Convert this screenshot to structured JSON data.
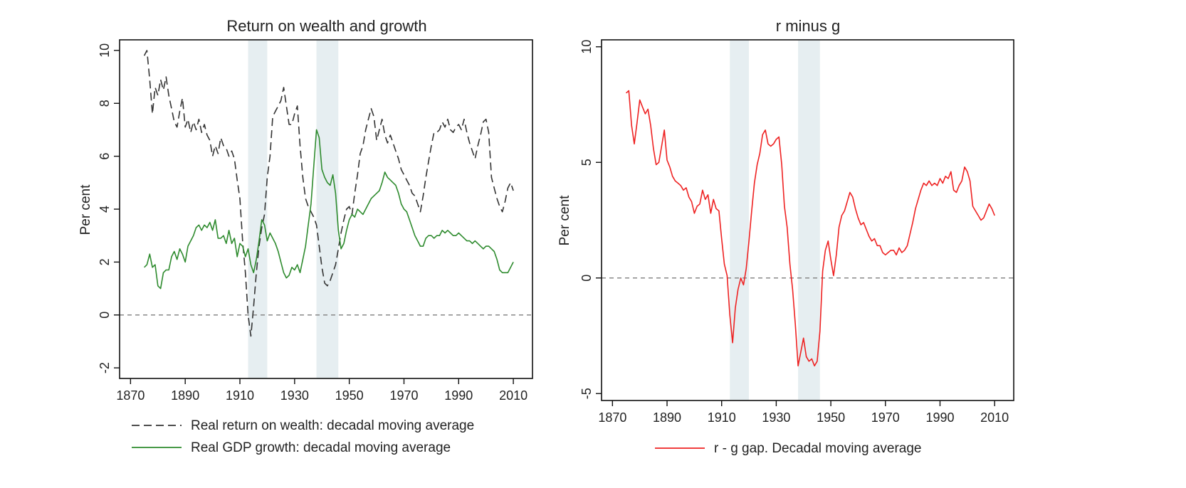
{
  "chart_data": [
    {
      "type": "line",
      "title": "Return on wealth and growth",
      "xlabel": "",
      "ylabel": "Per cent",
      "xlim": [
        1866,
        2017
      ],
      "ylim": [
        -2.4,
        10.4
      ],
      "xticks": [
        1870,
        1890,
        1910,
        1930,
        1950,
        1970,
        1990,
        2010
      ],
      "yticks": [
        -2,
        0,
        2,
        4,
        6,
        8,
        10
      ],
      "reference_line": {
        "y": 0,
        "style": "dashed",
        "color": "#888888"
      },
      "shaded_periods": [
        [
          1913,
          1920
        ],
        [
          1938,
          1946
        ]
      ],
      "shade_color": "#e6eef1",
      "grid": false,
      "legend_placement": "bottom",
      "series": [
        {
          "name": "Real return on wealth: decadal moving average",
          "color": "#333333",
          "dash": "dashed",
          "x": [
            1875,
            1876,
            1877,
            1878,
            1879,
            1880,
            1881,
            1882,
            1883,
            1884,
            1885,
            1886,
            1887,
            1888,
            1889,
            1890,
            1891,
            1892,
            1893,
            1894,
            1895,
            1896,
            1897,
            1898,
            1899,
            1900,
            1901,
            1902,
            1903,
            1904,
            1905,
            1906,
            1907,
            1908,
            1909,
            1910,
            1911,
            1912,
            1913,
            1914,
            1915,
            1916,
            1917,
            1918,
            1919,
            1920,
            1921,
            1922,
            1923,
            1924,
            1925,
            1926,
            1927,
            1928,
            1929,
            1930,
            1931,
            1932,
            1933,
            1934,
            1935,
            1936,
            1937,
            1938,
            1939,
            1940,
            1941,
            1942,
            1943,
            1944,
            1945,
            1946,
            1947,
            1948,
            1949,
            1950,
            1951,
            1952,
            1953,
            1954,
            1955,
            1956,
            1957,
            1958,
            1959,
            1960,
            1961,
            1962,
            1963,
            1964,
            1965,
            1966,
            1967,
            1968,
            1969,
            1970,
            1971,
            1972,
            1973,
            1974,
            1975,
            1976,
            1977,
            1978,
            1979,
            1980,
            1981,
            1982,
            1983,
            1984,
            1985,
            1986,
            1987,
            1988,
            1989,
            1990,
            1991,
            1992,
            1993,
            1994,
            1995,
            1996,
            1997,
            1998,
            1999,
            2000,
            2001,
            2002,
            2003,
            2004,
            2005,
            2006,
            2007,
            2008,
            2009,
            2010
          ],
          "values": [
            9.8,
            10.0,
            8.9,
            7.6,
            8.6,
            8.3,
            8.9,
            8.5,
            9.0,
            8.3,
            7.8,
            7.3,
            7.1,
            7.7,
            8.2,
            7.1,
            7.4,
            6.9,
            7.3,
            7.0,
            7.4,
            6.9,
            7.2,
            6.8,
            6.6,
            6.0,
            6.4,
            6.1,
            6.7,
            6.4,
            6.3,
            6.0,
            6.2,
            5.9,
            5.1,
            4.4,
            2.8,
            1.6,
            0.0,
            -0.8,
            0.3,
            1.6,
            2.6,
            3.3,
            3.8,
            5.2,
            6.0,
            7.5,
            7.7,
            7.9,
            8.1,
            8.6,
            7.9,
            7.2,
            7.2,
            7.6,
            7.9,
            6.4,
            5.2,
            4.4,
            4.1,
            3.9,
            3.7,
            3.4,
            2.6,
            1.8,
            1.2,
            1.1,
            1.3,
            1.6,
            1.9,
            2.5,
            3.1,
            3.6,
            4.0,
            4.1,
            3.8,
            4.6,
            5.3,
            6.1,
            6.4,
            7.0,
            7.4,
            7.8,
            7.5,
            6.6,
            7.0,
            7.4,
            6.8,
            6.5,
            6.8,
            6.5,
            6.2,
            5.9,
            5.5,
            5.3,
            5.1,
            4.9,
            4.6,
            4.5,
            4.2,
            3.9,
            4.5,
            5.2,
            5.8,
            6.4,
            6.9,
            6.9,
            7.0,
            7.3,
            7.1,
            7.4,
            7.0,
            6.9,
            7.1,
            7.2,
            7.0,
            7.4,
            6.9,
            6.5,
            6.2,
            5.9,
            6.4,
            6.8,
            7.3,
            7.4,
            6.9,
            5.2,
            4.8,
            4.4,
            4.1,
            3.9,
            4.3,
            4.8,
            5.0,
            4.7
          ]
        },
        {
          "name": "Real GDP growth: decadal moving average",
          "color": "#2e8b2e",
          "dash": "solid",
          "x": [
            1875,
            1876,
            1877,
            1878,
            1879,
            1880,
            1881,
            1882,
            1883,
            1884,
            1885,
            1886,
            1887,
            1888,
            1889,
            1890,
            1891,
            1892,
            1893,
            1894,
            1895,
            1896,
            1897,
            1898,
            1899,
            1900,
            1901,
            1902,
            1903,
            1904,
            1905,
            1906,
            1907,
            1908,
            1909,
            1910,
            1911,
            1912,
            1913,
            1914,
            1915,
            1916,
            1917,
            1918,
            1919,
            1920,
            1921,
            1922,
            1923,
            1924,
            1925,
            1926,
            1927,
            1928,
            1929,
            1930,
            1931,
            1932,
            1933,
            1934,
            1935,
            1936,
            1937,
            1938,
            1939,
            1940,
            1941,
            1942,
            1943,
            1944,
            1945,
            1946,
            1947,
            1948,
            1949,
            1950,
            1951,
            1952,
            1953,
            1954,
            1955,
            1956,
            1957,
            1958,
            1959,
            1960,
            1961,
            1962,
            1963,
            1964,
            1965,
            1966,
            1967,
            1968,
            1969,
            1970,
            1971,
            1972,
            1973,
            1974,
            1975,
            1976,
            1977,
            1978,
            1979,
            1980,
            1981,
            1982,
            1983,
            1984,
            1985,
            1986,
            1987,
            1988,
            1989,
            1990,
            1991,
            1992,
            1993,
            1994,
            1995,
            1996,
            1997,
            1998,
            1999,
            2000,
            2001,
            2002,
            2003,
            2004,
            2005,
            2006,
            2007,
            2008,
            2009,
            2010
          ],
          "values": [
            1.8,
            1.9,
            2.3,
            1.8,
            1.9,
            1.1,
            1.0,
            1.6,
            1.7,
            1.7,
            2.2,
            2.4,
            2.1,
            2.5,
            2.3,
            2.0,
            2.6,
            2.8,
            3.0,
            3.3,
            3.4,
            3.2,
            3.4,
            3.3,
            3.5,
            3.2,
            3.6,
            2.9,
            2.9,
            3.0,
            2.7,
            3.2,
            2.7,
            2.9,
            2.2,
            2.7,
            2.6,
            2.2,
            2.5,
            1.9,
            1.6,
            2.1,
            2.8,
            3.6,
            3.4,
            2.8,
            3.1,
            2.9,
            2.7,
            2.4,
            2.0,
            1.6,
            1.4,
            1.5,
            1.8,
            1.7,
            1.9,
            1.6,
            2.1,
            2.6,
            3.4,
            4.2,
            5.6,
            7.0,
            6.7,
            5.5,
            5.2,
            5.0,
            4.9,
            5.3,
            4.6,
            3.2,
            2.5,
            2.7,
            3.2,
            3.6,
            3.8,
            3.7,
            4.0,
            3.9,
            3.8,
            4.0,
            4.2,
            4.4,
            4.5,
            4.6,
            4.7,
            5.0,
            5.4,
            5.2,
            5.1,
            5.0,
            4.9,
            4.6,
            4.2,
            4.0,
            3.9,
            3.6,
            3.3,
            3.0,
            2.8,
            2.6,
            2.6,
            2.9,
            3.0,
            3.0,
            2.9,
            3.0,
            3.0,
            3.2,
            3.1,
            3.2,
            3.1,
            3.0,
            3.0,
            3.1,
            3.0,
            2.9,
            2.8,
            2.8,
            2.7,
            2.8,
            2.7,
            2.6,
            2.5,
            2.6,
            2.6,
            2.5,
            2.4,
            2.1,
            1.7,
            1.6,
            1.6,
            1.6,
            1.8,
            2.0
          ]
        }
      ]
    },
    {
      "type": "line",
      "title": "r minus g",
      "xlabel": "",
      "ylabel": "Per cent",
      "xlim": [
        1866,
        2017
      ],
      "ylim": [
        -5.3,
        10.3
      ],
      "xticks": [
        1870,
        1890,
        1910,
        1930,
        1950,
        1970,
        1990,
        2010
      ],
      "yticks": [
        -5,
        0,
        5,
        10
      ],
      "reference_line": {
        "y": 0,
        "style": "dashed",
        "color": "#888888"
      },
      "shaded_periods": [
        [
          1913,
          1920
        ],
        [
          1938,
          1946
        ]
      ],
      "shade_color": "#e6eef1",
      "grid": false,
      "legend_placement": "bottom",
      "series": [
        {
          "name": "r - g gap. Decadal moving average",
          "color": "#ee2222",
          "dash": "solid",
          "x": [
            1875,
            1876,
            1877,
            1878,
            1879,
            1880,
            1881,
            1882,
            1883,
            1884,
            1885,
            1886,
            1887,
            1888,
            1889,
            1890,
            1891,
            1892,
            1893,
            1894,
            1895,
            1896,
            1897,
            1898,
            1899,
            1900,
            1901,
            1902,
            1903,
            1904,
            1905,
            1906,
            1907,
            1908,
            1909,
            1910,
            1911,
            1912,
            1913,
            1914,
            1915,
            1916,
            1917,
            1918,
            1919,
            1920,
            1921,
            1922,
            1923,
            1924,
            1925,
            1926,
            1927,
            1928,
            1929,
            1930,
            1931,
            1932,
            1933,
            1934,
            1935,
            1936,
            1937,
            1938,
            1939,
            1940,
            1941,
            1942,
            1943,
            1944,
            1945,
            1946,
            1947,
            1948,
            1949,
            1950,
            1951,
            1952,
            1953,
            1954,
            1955,
            1956,
            1957,
            1958,
            1959,
            1960,
            1961,
            1962,
            1963,
            1964,
            1965,
            1966,
            1967,
            1968,
            1969,
            1970,
            1971,
            1972,
            1973,
            1974,
            1975,
            1976,
            1977,
            1978,
            1979,
            1980,
            1981,
            1982,
            1983,
            1984,
            1985,
            1986,
            1987,
            1988,
            1989,
            1990,
            1991,
            1992,
            1993,
            1994,
            1995,
            1996,
            1997,
            1998,
            1999,
            2000,
            2001,
            2002,
            2003,
            2004,
            2005,
            2006,
            2007,
            2008,
            2009,
            2010
          ],
          "values": [
            8.0,
            8.1,
            6.6,
            5.8,
            6.7,
            7.7,
            7.4,
            7.1,
            7.3,
            6.6,
            5.6,
            4.9,
            5.0,
            5.7,
            6.4,
            5.1,
            4.8,
            4.4,
            4.2,
            4.1,
            4.0,
            3.8,
            3.9,
            3.5,
            3.3,
            2.8,
            3.1,
            3.2,
            3.8,
            3.4,
            3.6,
            2.8,
            3.4,
            3.0,
            2.9,
            1.7,
            0.6,
            0.1,
            -1.6,
            -2.8,
            -1.3,
            -0.5,
            0.0,
            -0.3,
            0.4,
            1.6,
            2.9,
            4.1,
            4.9,
            5.4,
            6.2,
            6.4,
            5.8,
            5.7,
            5.8,
            6.0,
            6.1,
            4.9,
            3.1,
            2.2,
            0.6,
            -0.5,
            -2.0,
            -3.8,
            -3.2,
            -2.6,
            -3.4,
            -3.6,
            -3.5,
            -3.8,
            -3.6,
            -2.3,
            0.3,
            1.2,
            1.6,
            0.8,
            0.1,
            1.0,
            2.2,
            2.7,
            2.9,
            3.3,
            3.7,
            3.5,
            3.0,
            2.6,
            2.3,
            2.4,
            2.1,
            1.8,
            1.6,
            1.7,
            1.4,
            1.4,
            1.1,
            1.0,
            1.1,
            1.2,
            1.2,
            1.0,
            1.3,
            1.1,
            1.2,
            1.4,
            1.9,
            2.4,
            3.0,
            3.4,
            3.8,
            4.1,
            4.0,
            4.2,
            4.0,
            4.1,
            4.0,
            4.3,
            4.1,
            4.4,
            4.3,
            4.6,
            3.8,
            3.7,
            4.0,
            4.2,
            4.8,
            4.6,
            4.2,
            3.1,
            2.9,
            2.7,
            2.5,
            2.6,
            2.9,
            3.2,
            3.0,
            2.7
          ]
        }
      ]
    }
  ]
}
